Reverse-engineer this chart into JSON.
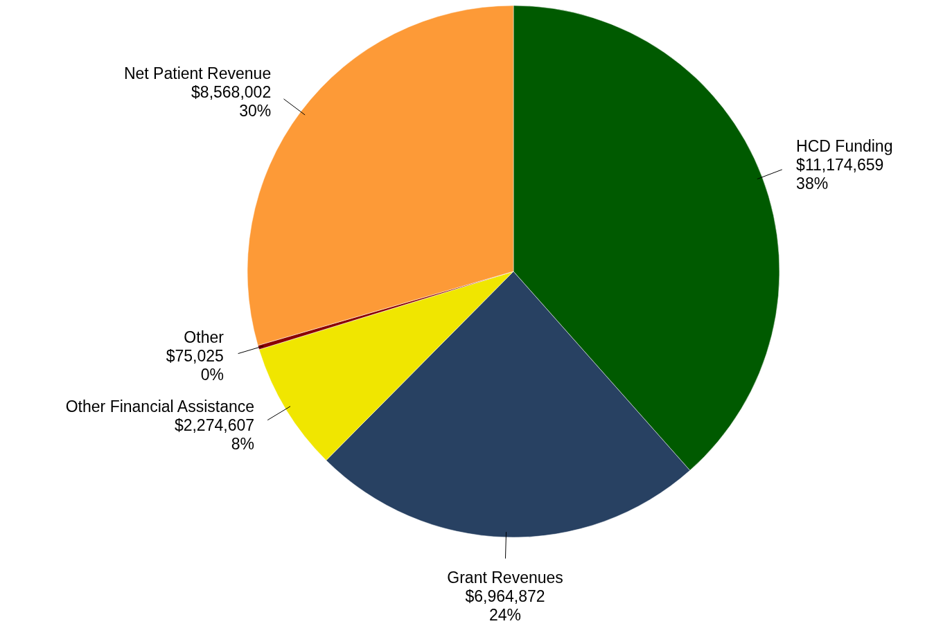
{
  "chart_data": {
    "type": "pie",
    "categories": [
      "HCD Funding",
      "Grant Revenues",
      "Other Financial Assistance",
      "Other",
      "Net Patient Revenue"
    ],
    "values": [
      11174659,
      6964872,
      2274607,
      75025,
      8568002
    ],
    "colors": [
      "#005a00",
      "#284162",
      "#f0e600",
      "#8b0000",
      "#fd9a37"
    ],
    "value_labels": [
      "$11,174,659\n38%",
      "$6,964,872\n24%",
      "$2,274,607\n8%",
      "$75,025\n0%",
      "$8,568,002\n30%"
    ]
  }
}
